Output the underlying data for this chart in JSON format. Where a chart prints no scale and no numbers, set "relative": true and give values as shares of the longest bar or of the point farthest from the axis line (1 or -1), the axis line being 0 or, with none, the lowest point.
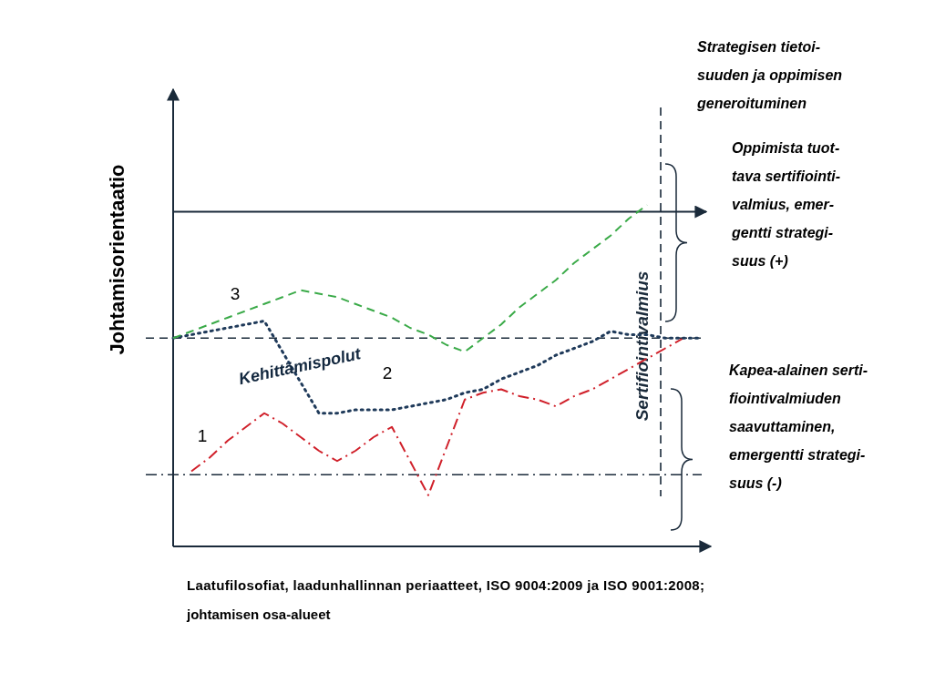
{
  "chart_data": {
    "type": "line",
    "relative": true,
    "ylabel": "Johtamisorientaatio",
    "xlabel": "Laatufilosofiat, laadunhallinnan periaatteet, ISO 9004:2009 ja ISO 9001:2008; johtamisen osa-alueet",
    "categories": [
      null,
      null,
      null,
      null,
      null,
      null,
      null,
      null,
      null,
      null,
      null,
      null,
      null,
      null,
      null,
      null,
      null,
      null,
      null,
      null,
      null,
      null,
      null,
      null,
      null,
      null,
      null,
      null,
      null,
      null
    ],
    "series": [
      {
        "name": "1",
        "color": "#d0202a",
        "line_style": "dashdot",
        "values": [
          null,
          0.22,
          0.26,
          0.31,
          0.35,
          0.39,
          0.36,
          0.32,
          0.28,
          0.25,
          0.28,
          0.32,
          0.35,
          0.25,
          0.15,
          0.29,
          0.43,
          0.45,
          0.46,
          0.44,
          0.43,
          0.41,
          0.44,
          0.46,
          0.49,
          0.52,
          0.55,
          0.58,
          0.61,
          null
        ]
      },
      {
        "name": "2",
        "color": "#1f3a5a",
        "line_style": "dotted",
        "values": [
          0.61,
          0.62,
          0.63,
          0.64,
          0.65,
          0.66,
          0.57,
          0.48,
          0.39,
          0.39,
          0.4,
          0.4,
          0.4,
          0.41,
          0.42,
          0.43,
          0.45,
          0.46,
          0.49,
          0.51,
          0.53,
          0.56,
          0.58,
          0.6,
          0.63,
          0.62,
          0.62,
          0.61,
          0.61,
          0.61
        ]
      },
      {
        "name": "3",
        "color": "#3aaa48",
        "line_style": "dashed",
        "values": [
          0.61,
          0.63,
          0.65,
          0.67,
          0.69,
          0.71,
          0.73,
          0.75,
          0.74,
          0.73,
          0.71,
          0.69,
          0.67,
          0.64,
          0.62,
          0.59,
          0.57,
          0.61,
          0.65,
          0.7,
          0.74,
          0.78,
          0.83,
          0.87,
          0.91,
          0.96,
          1,
          null,
          null,
          null
        ]
      }
    ],
    "ref_lines": [
      {
        "axis": "y",
        "value": 0.98,
        "line_style": "solid"
      },
      {
        "axis": "y",
        "value": 0.61,
        "line_style": "dashed"
      },
      {
        "axis": "y",
        "value": 0.21,
        "line_style": "dashdot"
      },
      {
        "axis": "x",
        "label": "Sertifiointivalmius",
        "line_style": "dashed"
      }
    ],
    "annotations": [
      "Kehittämispolut",
      "Strategisen tietoi-\nsuuden ja oppimisen\ngeneroituminen",
      "Oppimista tuot-\ntava sertifiointi-\nvalmius, emer-\ngentti strategi-\nsuus (+)",
      "Kapea-alainen serti-\nfiointivalmiuden\nsaavuttaminen,\nemergentti strategi-\nsuus (-)"
    ]
  }
}
